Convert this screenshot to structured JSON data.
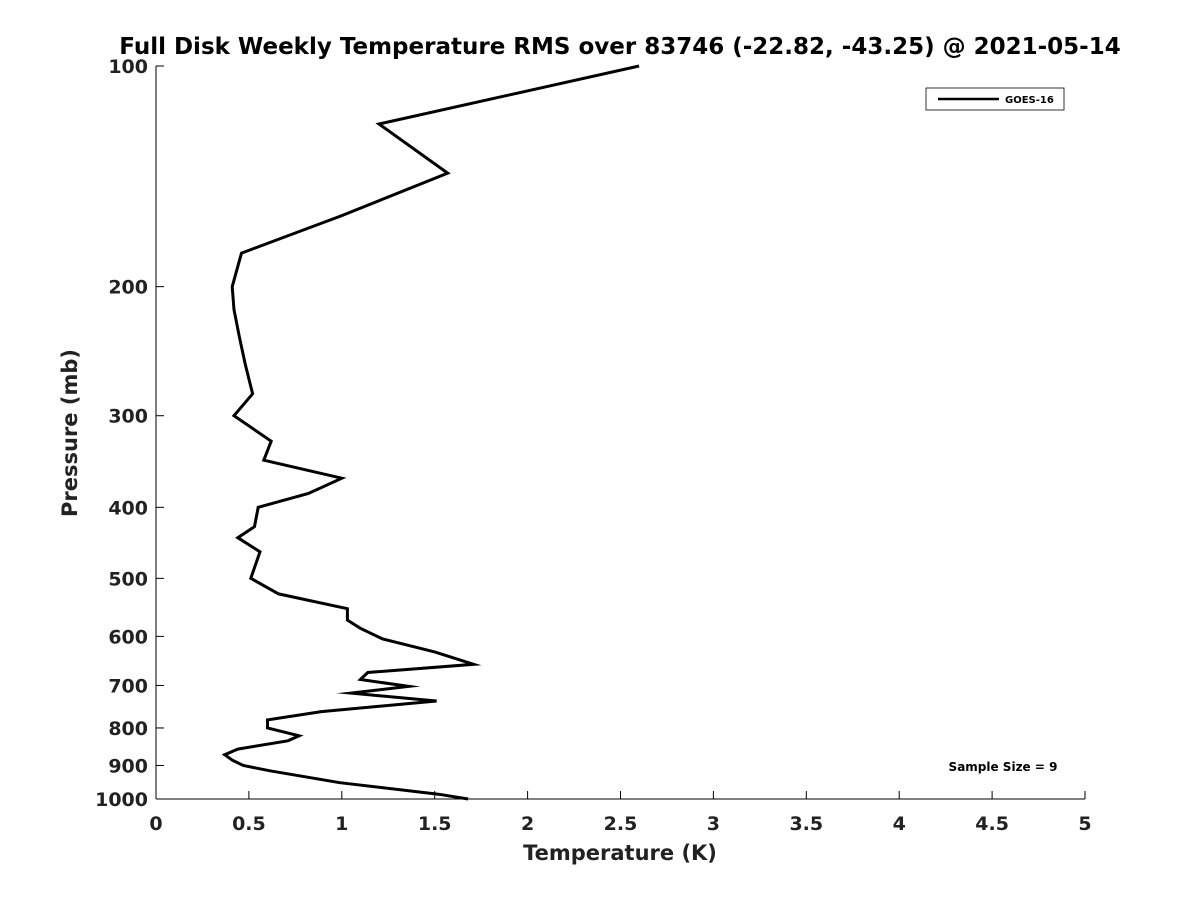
{
  "chart_data": {
    "type": "line",
    "title": "Full Disk Weekly Temperature RMS over 83746 (-22.82, -43.25) @ 2021-05-14",
    "xlabel": "Temperature (K)",
    "ylabel": "Pressure (mb)",
    "xlim": [
      0,
      5
    ],
    "ylim": [
      1000,
      100
    ],
    "yscale": "log",
    "y_reversed": true,
    "grid": false,
    "xticks": [
      0,
      0.5,
      1,
      1.5,
      2,
      2.5,
      3,
      3.5,
      4,
      4.5,
      5
    ],
    "xtick_labels": [
      "0",
      "0.5",
      "1",
      "1.5",
      "2",
      "2.5",
      "3",
      "3.5",
      "4",
      "4.5",
      "5"
    ],
    "yticks": [
      100,
      200,
      300,
      400,
      500,
      600,
      700,
      800,
      900,
      1000
    ],
    "ytick_labels": [
      "100",
      "200",
      "300",
      "400",
      "500",
      "600",
      "700",
      "800",
      "900",
      "1000"
    ],
    "legend_position": "top-right",
    "series": [
      {
        "name": "GOES-16",
        "color": "#000000",
        "x": [
          2.6,
          1.2,
          1.57,
          1.0,
          0.46,
          0.41,
          0.42,
          0.45,
          0.48,
          0.52,
          0.42,
          0.62,
          0.58,
          1.0,
          0.82,
          0.55,
          0.53,
          0.44,
          0.56,
          0.51,
          0.66,
          1.03,
          1.03,
          1.1,
          1.22,
          1.5,
          1.71,
          1.14,
          1.1,
          1.36,
          1.05,
          1.51,
          0.89,
          0.6,
          0.6,
          0.77,
          0.71,
          0.44,
          0.37,
          0.41,
          0.47,
          0.61,
          0.99,
          1.52,
          1.68
        ],
        "y": [
          100,
          120,
          140,
          160,
          180,
          200,
          215,
          235,
          255,
          280,
          300,
          325,
          345,
          365,
          383,
          400,
          425,
          440,
          460,
          500,
          525,
          550,
          570,
          585,
          605,
          630,
          655,
          672,
          687,
          702,
          717,
          735,
          760,
          780,
          800,
          820,
          833,
          855,
          870,
          885,
          900,
          915,
          950,
          985,
          1000
        ]
      }
    ],
    "annotations": [
      "Sample Size = 9"
    ]
  }
}
